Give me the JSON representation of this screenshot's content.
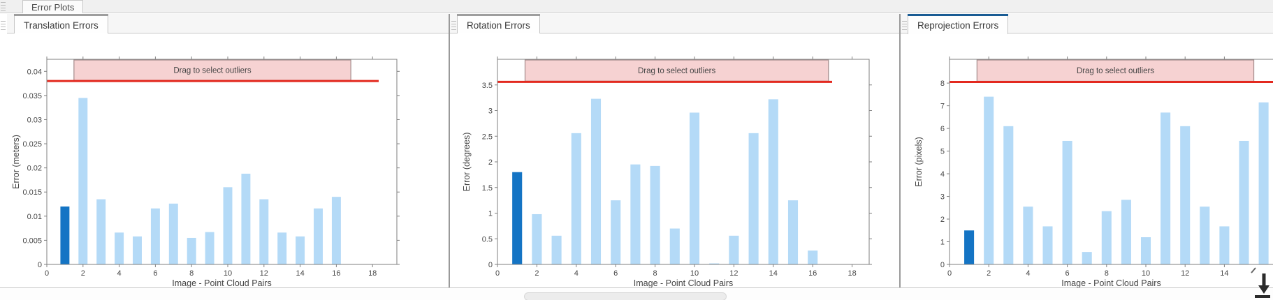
{
  "app": {
    "document_tab": "Error Plots"
  },
  "colors": {
    "bar": "#b4daf7",
    "highlighted_bar": "#1474c4",
    "threshold_line": "#e3291f",
    "band_fill": "#f6d2d2",
    "band_border": "#a38c8c",
    "axis": "#7f7f7f",
    "selected_tab_accent": "#1a5c94",
    "unselected_tab_accent": "#9e9e9e"
  },
  "panels": [
    {
      "tab_label": "Translation Errors",
      "selected": false,
      "chart_data": {
        "type": "bar",
        "title": "",
        "xlabel": "Image - Point Cloud Pairs",
        "ylabel": "Error (meters)",
        "x": [
          1,
          2,
          3,
          4,
          5,
          6,
          7,
          8,
          9,
          10,
          11,
          12,
          13,
          14,
          15,
          16
        ],
        "values": [
          0.012,
          0.0345,
          0.0135,
          0.0066,
          0.0058,
          0.0116,
          0.0126,
          0.0055,
          0.0067,
          0.016,
          0.0188,
          0.0135,
          0.0066,
          0.0058,
          0.0116,
          0.014
        ],
        "highlight_index": 0,
        "xlim": [
          0,
          19.3
        ],
        "ylim": [
          0,
          0.0425
        ],
        "xticks": [
          0,
          2,
          4,
          6,
          8,
          10,
          12,
          14,
          16,
          18
        ],
        "yticks": [
          0,
          0.005,
          0.01,
          0.015,
          0.02,
          0.025,
          0.03,
          0.035,
          0.04
        ],
        "threshold": 0.038,
        "band_range": [
          1.5,
          16.8
        ],
        "annotation": "Drag to select outliers",
        "grid": false,
        "legend": "none"
      }
    },
    {
      "tab_label": "Rotation Errors",
      "selected": false,
      "chart_data": {
        "type": "bar",
        "title": "",
        "xlabel": "Image - Point Cloud Pairs",
        "ylabel": "Error (degrees)",
        "x": [
          1,
          2,
          3,
          4,
          5,
          6,
          7,
          8,
          9,
          10,
          11,
          12,
          13,
          14,
          15,
          16
        ],
        "values": [
          1.8,
          0.98,
          0.56,
          2.56,
          3.23,
          1.25,
          1.95,
          1.92,
          0.7,
          2.96,
          0.02,
          0.56,
          2.56,
          3.22,
          1.25,
          0.27
        ],
        "highlight_index": 0,
        "xlim": [
          0,
          18.9
        ],
        "ylim": [
          0,
          4.0
        ],
        "xticks": [
          0,
          2,
          4,
          6,
          8,
          10,
          12,
          14,
          16,
          18
        ],
        "yticks": [
          0,
          0.5,
          1,
          1.5,
          2,
          2.5,
          3,
          3.5
        ],
        "threshold": 3.56,
        "band_range": [
          1.4,
          16.8
        ],
        "annotation": "Drag to select outliers",
        "grid": false,
        "legend": "none"
      }
    },
    {
      "tab_label": "Reprojection Errors",
      "selected": true,
      "chart_data": {
        "type": "bar",
        "title": "",
        "xlabel": "Image - Point Cloud Pairs",
        "ylabel": "Error (pixels)",
        "x": [
          1,
          2,
          3,
          4,
          5,
          6,
          7,
          8,
          9,
          10,
          11,
          12,
          13,
          14,
          15,
          16
        ],
        "values": [
          1.5,
          7.4,
          6.1,
          2.55,
          1.68,
          5.45,
          0.55,
          2.35,
          2.85,
          1.2,
          6.7,
          6.1,
          2.55,
          1.68,
          5.45,
          7.15
        ],
        "highlight_index": 0,
        "xlim": [
          0,
          17.5
        ],
        "ylim": [
          0,
          9.05
        ],
        "xticks": [
          0,
          2,
          4,
          6,
          8,
          10,
          12,
          14
        ],
        "yticks": [
          0,
          1,
          2,
          3,
          4,
          5,
          6,
          7,
          8
        ],
        "threshold": 8.05,
        "band_range": [
          1.4,
          15.5
        ],
        "annotation": "Drag to select outliers",
        "grid": false,
        "legend": "none"
      }
    }
  ],
  "footer": {
    "corner_icon": "down-arrow-icon"
  }
}
